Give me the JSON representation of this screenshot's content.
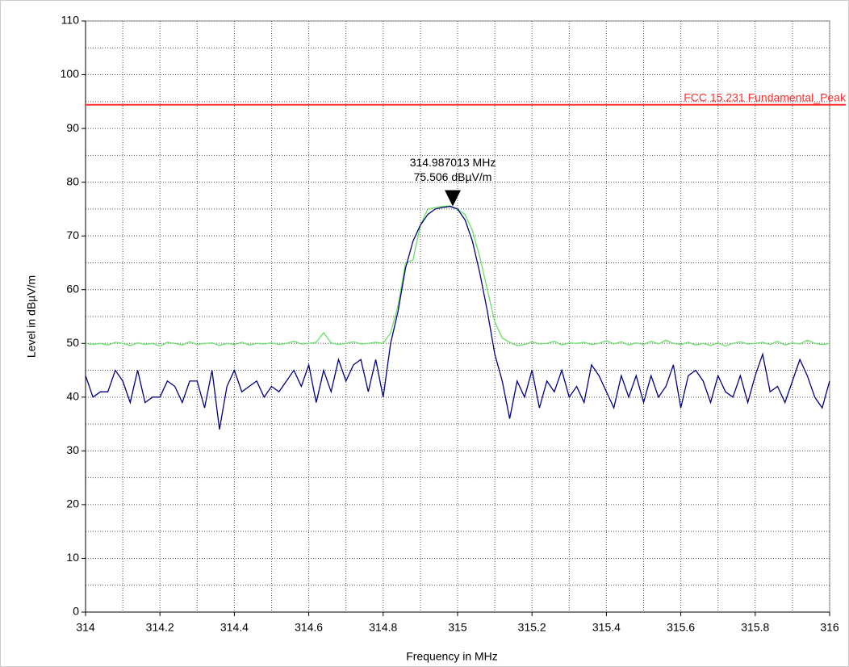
{
  "chart_data": {
    "type": "line",
    "xlabel": "Frequency in MHz",
    "ylabel": "Level in dBµV/m",
    "xlim": [
      314,
      316
    ],
    "ylim": [
      0,
      110
    ],
    "xticks": [
      314,
      314.2,
      314.4,
      314.6,
      314.8,
      315,
      315.2,
      315.4,
      315.6,
      315.8,
      316
    ],
    "yticks": [
      0,
      10,
      20,
      30,
      40,
      50,
      60,
      70,
      80,
      90,
      100,
      110
    ],
    "xminorticks": [
      314.1,
      314.3,
      314.5,
      314.7,
      314.9,
      315.1,
      315.3,
      315.5,
      315.7,
      315.9
    ],
    "yminorticks": [
      5,
      15,
      25,
      35,
      45,
      55,
      65,
      75,
      85,
      95,
      105
    ],
    "grid": true,
    "x": [
      314,
      314.02,
      314.04,
      314.06,
      314.08,
      314.1,
      314.12,
      314.14,
      314.16,
      314.18,
      314.2,
      314.22,
      314.24,
      314.26,
      314.28,
      314.3,
      314.32,
      314.34,
      314.36,
      314.38,
      314.4,
      314.42,
      314.44,
      314.46,
      314.48,
      314.5,
      314.52,
      314.54,
      314.56,
      314.58,
      314.6,
      314.62,
      314.64,
      314.66,
      314.68,
      314.7,
      314.72,
      314.74,
      314.76,
      314.78,
      314.8,
      314.82,
      314.84,
      314.86,
      314.88,
      314.9,
      314.92,
      314.94,
      314.96,
      314.98,
      315,
      315.02,
      315.04,
      315.06,
      315.08,
      315.1,
      315.12,
      315.14,
      315.16,
      315.18,
      315.2,
      315.22,
      315.24,
      315.26,
      315.28,
      315.3,
      315.32,
      315.34,
      315.36,
      315.38,
      315.4,
      315.42,
      315.44,
      315.46,
      315.48,
      315.5,
      315.52,
      315.54,
      315.56,
      315.58,
      315.6,
      315.62,
      315.64,
      315.66,
      315.68,
      315.7,
      315.72,
      315.74,
      315.76,
      315.78,
      315.8,
      315.82,
      315.84,
      315.86,
      315.88,
      315.9,
      315.92,
      315.94,
      315.96,
      315.98,
      316
    ],
    "series": [
      {
        "color": "#66e066",
        "values": [
          50,
          49.8,
          50,
          49.7,
          50.2,
          50,
          49.6,
          50.1,
          49.8,
          50,
          49.5,
          50.2,
          50,
          49.7,
          50.3,
          49.8,
          50,
          50.1,
          49.6,
          50,
          49.8,
          50.2,
          49.7,
          50,
          49.9,
          50.1,
          49.8,
          50,
          50.4,
          49.9,
          50,
          50.2,
          52,
          50.1,
          49.8,
          50,
          50.3,
          49.9,
          50,
          50.2,
          50,
          52,
          57,
          65,
          65.5,
          72,
          75,
          75.3,
          75.5,
          75.6,
          75,
          74,
          71,
          66,
          60,
          54,
          51,
          50.2,
          49.6,
          49.8,
          50.3,
          49.9,
          50,
          50.4,
          49.7,
          50.1,
          50,
          50.2,
          49.8,
          50,
          50.5,
          49.9,
          50.3,
          49.7,
          50.1,
          49.8,
          50.4,
          49.9,
          50.6,
          50,
          49.8,
          50.2,
          49.7,
          50,
          49.6,
          50.1,
          49.5,
          50,
          50.3,
          49.9,
          50,
          50.2,
          49.8,
          50.4,
          49.7,
          50.1,
          49.9,
          50.6,
          50,
          49.8,
          50
        ]
      },
      {
        "color": "#000080",
        "values": [
          44,
          40,
          41,
          41,
          45,
          43,
          39,
          45,
          39,
          40,
          40,
          43,
          42,
          39,
          43,
          43,
          38,
          45,
          34,
          42,
          45,
          41,
          42,
          43,
          40,
          42,
          41,
          43,
          45,
          42,
          46,
          39,
          45,
          41,
          47,
          43,
          46,
          47,
          41,
          47,
          40,
          50,
          56,
          64,
          69,
          72,
          74,
          75,
          75.3,
          75.5,
          75,
          73,
          69,
          63,
          56,
          48,
          43,
          36,
          43,
          40,
          45,
          38,
          43,
          41,
          45,
          40,
          42,
          39,
          46,
          44,
          41,
          38,
          44,
          40,
          44,
          39,
          44,
          40,
          42,
          46,
          38,
          44,
          45,
          43,
          39,
          44,
          41,
          40,
          44,
          39,
          44,
          48,
          41,
          42,
          39,
          43,
          47,
          44,
          40,
          38,
          43
        ]
      }
    ],
    "limit": {
      "name": "FCC 15.231 Fundamental_Peak",
      "value": 94.4,
      "color": "#ff3030"
    },
    "marker": {
      "x": 314.987013,
      "y": 75.506,
      "label_x": "314.987013 MHz",
      "label_y": "75.506 dBµV/m"
    }
  }
}
